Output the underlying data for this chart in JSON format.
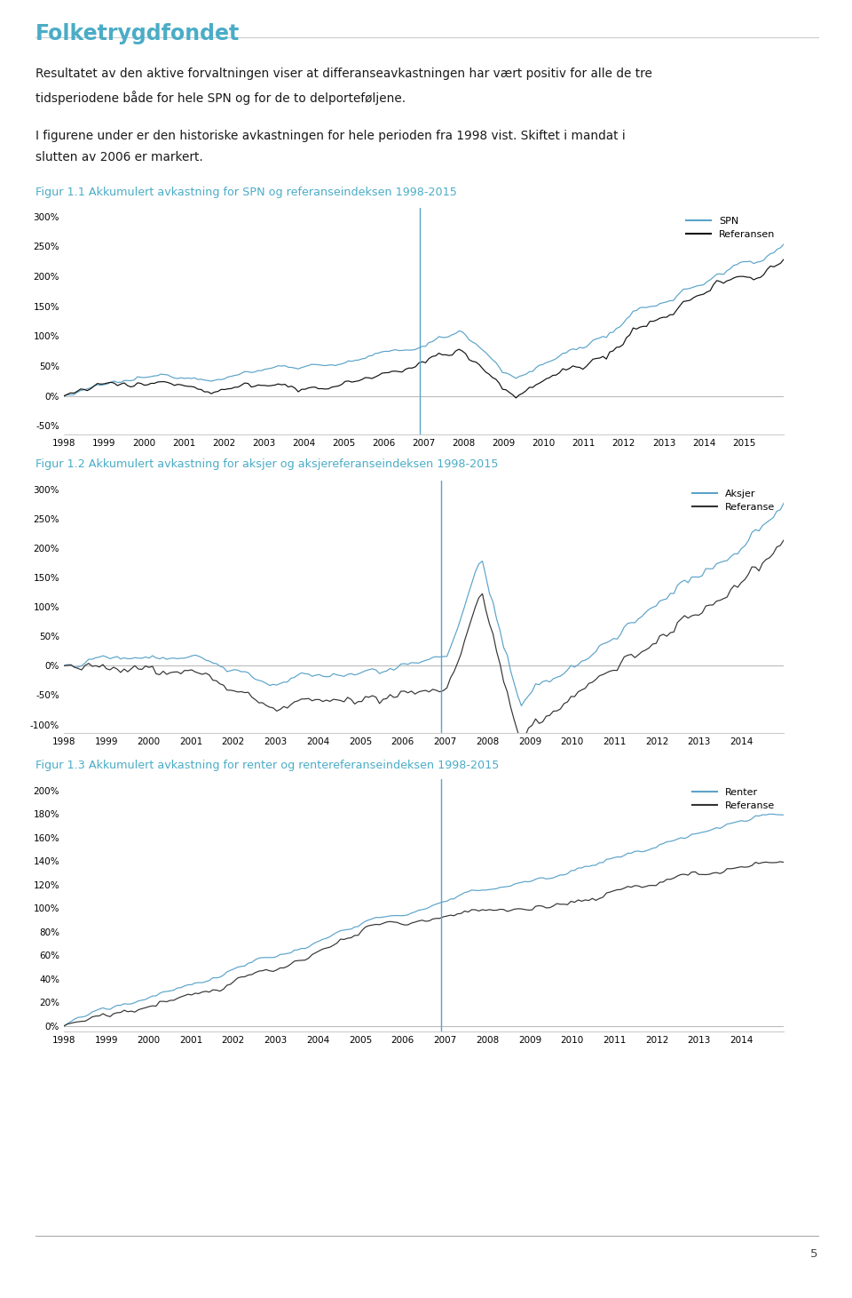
{
  "header_text": "Folketrygdfondet",
  "header_color": "#4BACC6",
  "body_text1": "Resultatet av den aktive forvaltningen viser at differanseavkastningen har vært positiv for alle de tre\ntidsperiodene både for hele SPN og for de to delporteføljene.",
  "body_text2": "I figurene under er den historiske avkastningen for hele perioden fra 1998 vist. Skiftet i mandat i\nslutten av 2006 er markert.",
  "fig1_title": "Figur 1.1 Akkumulert avkastning for SPN og referanseindeksen 1998-2015",
  "fig2_title": "Figur 1.2 Akkumulert avkastning for aksjer og aksjereferanseindeksen 1998-2015",
  "fig3_title": "Figur 1.3 Akkumulert avkastning for renter og rentereferanseindeksen 1998-2015",
  "title_color": "#4BACC6",
  "spn_color": "#5BA3C9",
  "ref1_color": "#111111",
  "aksjer_color": "#5BA3C9",
  "ref2_color": "#333333",
  "renter_color": "#5BA3C9",
  "ref3_color": "#333333",
  "vline_color": "#5BA3C9",
  "hline_color": "#BBBBBB",
  "fig1_legend": [
    "SPN",
    "Referansen"
  ],
  "fig2_legend": [
    "Aksjer",
    "Referanse"
  ],
  "fig3_legend": [
    "Renter",
    "Referanse"
  ],
  "fig1_yticks": [
    -50,
    0,
    50,
    100,
    150,
    200,
    250,
    300
  ],
  "fig2_yticks": [
    -100,
    -50,
    0,
    50,
    100,
    150,
    200,
    250,
    300
  ],
  "fig3_yticks": [
    0,
    20,
    40,
    60,
    80,
    100,
    120,
    140,
    160,
    180,
    200
  ],
  "fig1_ylim": [
    -65,
    315
  ],
  "fig2_ylim": [
    -115,
    315
  ],
  "fig3_ylim": [
    -5,
    210
  ],
  "years_fig1": [
    1998,
    1999,
    2000,
    2001,
    2002,
    2003,
    2004,
    2005,
    2006,
    2007,
    2008,
    2009,
    2010,
    2011,
    2012,
    2013,
    2014,
    2015
  ],
  "years_fig2": [
    1998,
    1999,
    2000,
    2001,
    2002,
    2003,
    2004,
    2005,
    2006,
    2007,
    2008,
    2009,
    2010,
    2011,
    2012,
    2013,
    2014
  ],
  "years_fig3": [
    1998,
    1999,
    2000,
    2001,
    2002,
    2003,
    2004,
    2005,
    2006,
    2007,
    2008,
    2009,
    2010,
    2011,
    2012,
    2013,
    2014
  ],
  "vline_x": 2006.9,
  "page_number": "5",
  "background_color": "#FFFFFF"
}
